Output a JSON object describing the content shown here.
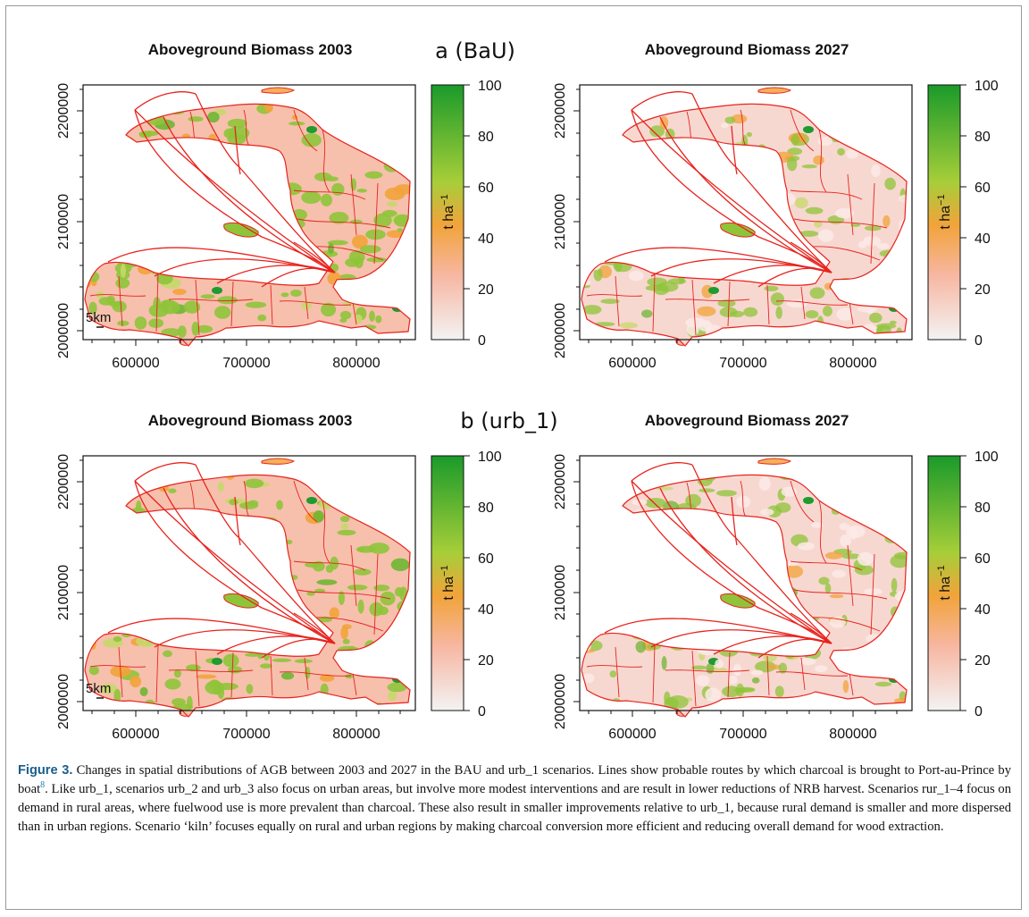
{
  "figure": {
    "panels": [
      {
        "id": "a-left",
        "title": "Aboveground Biomass 2003",
        "degraded": false,
        "show_scale": true
      },
      {
        "id": "a-right",
        "title": "Aboveground Biomass 2027",
        "degraded": true,
        "show_scale": false
      },
      {
        "id": "b-left",
        "title": "Aboveground Biomass 2003",
        "degraded": false,
        "show_scale": true
      },
      {
        "id": "b-right",
        "title": "Aboveground Biomass 2027",
        "degraded": true,
        "show_scale": false
      }
    ],
    "scenario_labels": [
      "a (BaU)",
      "b (urb_1)"
    ],
    "x_ticks": [
      "600000",
      "700000",
      "800000"
    ],
    "y_ticks": [
      "2000000",
      "2100000",
      "2200000"
    ],
    "colorbar": {
      "ticks": [
        "0",
        "20",
        "40",
        "60",
        "80",
        "100"
      ],
      "unit_label": "t ha",
      "unit_sup": "−1",
      "stops": [
        "#f2f2f2",
        "#f7b7a3",
        "#f2a33a",
        "#a6ce39",
        "#1a9a2a"
      ]
    },
    "scale_bar": "5km",
    "colors": {
      "routes": "#e8231e",
      "land_base": "#f6c0ad",
      "veg": "#8fc43a",
      "dense_forest": "#1f9b2f"
    }
  },
  "caption": {
    "label": "Figure 3.",
    "text_before_ref": " Changes in spatial distributions of AGB between 2003 and 2027 in the BAU and urb_1 scenarios. Lines show probable routes by which charcoal is brought to Port-au-Prince by boat",
    "ref": "8",
    "text_after_ref": ". Like urb_1, scenarios urb_2 and urb_3 also focus on urban areas, but involve more modest interventions and are result in lower reductions of NRB harvest. Scenarios rur_1–4 focus on demand in rural areas, where fuelwood use is more prevalent than charcoal. These also result in smaller improvements relative to urb_1, because rural demand is smaller and more dispersed than in urban regions. Scenario ‘kiln’ focuses equally on rural and urban regions by making charcoal conversion more efficient and reducing overall demand for wood extraction."
  }
}
